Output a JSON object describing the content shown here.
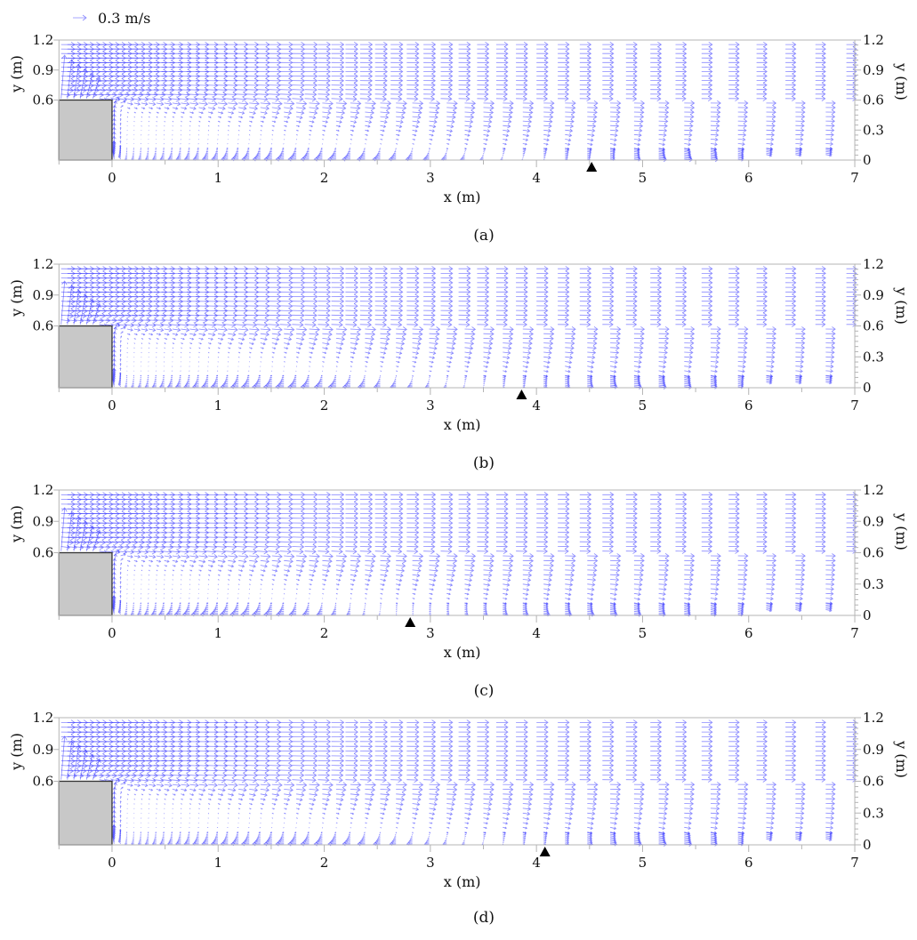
{
  "legend": {
    "reference_label": "0.3 m/s",
    "reference_speed": 0.3
  },
  "colors": {
    "vector": "#2a2aff",
    "obstacle": "#c8c8c8",
    "frame": "#b4b4b4",
    "marker": "#000000"
  },
  "chart_data": [
    {
      "panel": "(a)",
      "type": "quiver",
      "xlabel": "x (m)",
      "ylabel_left": "y (m)",
      "ylabel_right": "y (m)",
      "xlim": [
        -0.5,
        7
      ],
      "ylim": [
        0,
        1.2
      ],
      "xticks": [
        0,
        1,
        2,
        3,
        4,
        5,
        6,
        7
      ],
      "yticks_left": [
        0.6,
        0.9,
        1.2
      ],
      "yticks_right": [
        0,
        0.3,
        0.6,
        0.9,
        1.2
      ],
      "obstacle": {
        "x": [
          -0.5,
          0
        ],
        "y": [
          0,
          0.6
        ]
      },
      "marker_x": 4.52,
      "field_extent_x": 6.0
    },
    {
      "panel": "(b)",
      "type": "quiver",
      "xlabel": "x (m)",
      "ylabel_left": "y (m)",
      "ylabel_right": "y (m)",
      "xlim": [
        -0.5,
        7
      ],
      "ylim": [
        0,
        1.2
      ],
      "xticks": [
        0,
        1,
        2,
        3,
        4,
        5,
        6,
        7
      ],
      "yticks_left": [
        0.6,
        0.9,
        1.2
      ],
      "yticks_right": [
        0,
        0.3,
        0.6,
        0.9,
        1.2
      ],
      "obstacle": {
        "x": [
          -0.5,
          0
        ],
        "y": [
          0,
          0.6
        ]
      },
      "marker_x": 3.86,
      "field_extent_x": 6.0
    },
    {
      "panel": "(c)",
      "type": "quiver",
      "xlabel": "x (m)",
      "ylabel_left": "y (m)",
      "ylabel_right": "y (m)",
      "xlim": [
        -0.5,
        7
      ],
      "ylim": [
        0,
        1.2
      ],
      "xticks": [
        0,
        1,
        2,
        3,
        4,
        5,
        6,
        7
      ],
      "yticks_left": [
        0.6,
        0.9,
        1.2
      ],
      "yticks_right": [
        0,
        0.3,
        0.6,
        0.9,
        1.2
      ],
      "obstacle": {
        "x": [
          -0.5,
          0
        ],
        "y": [
          0,
          0.6
        ]
      },
      "marker_x": 2.81,
      "field_extent_x": 6.0
    },
    {
      "panel": "(d)",
      "type": "quiver",
      "xlabel": "x (m)",
      "ylabel_left": "y (m)",
      "ylabel_right": "y (m)",
      "xlim": [
        -0.5,
        7
      ],
      "ylim": [
        0,
        1.2
      ],
      "xticks": [
        0,
        1,
        2,
        3,
        4,
        5,
        6,
        7
      ],
      "yticks_left": [
        0.6,
        0.9,
        1.2
      ],
      "yticks_right": [
        0,
        0.3,
        0.6,
        0.9,
        1.2
      ],
      "obstacle": {
        "x": [
          -0.5,
          0
        ],
        "y": [
          0,
          0.6
        ]
      },
      "marker_x": 4.08,
      "field_extent_x": 6.0
    }
  ]
}
